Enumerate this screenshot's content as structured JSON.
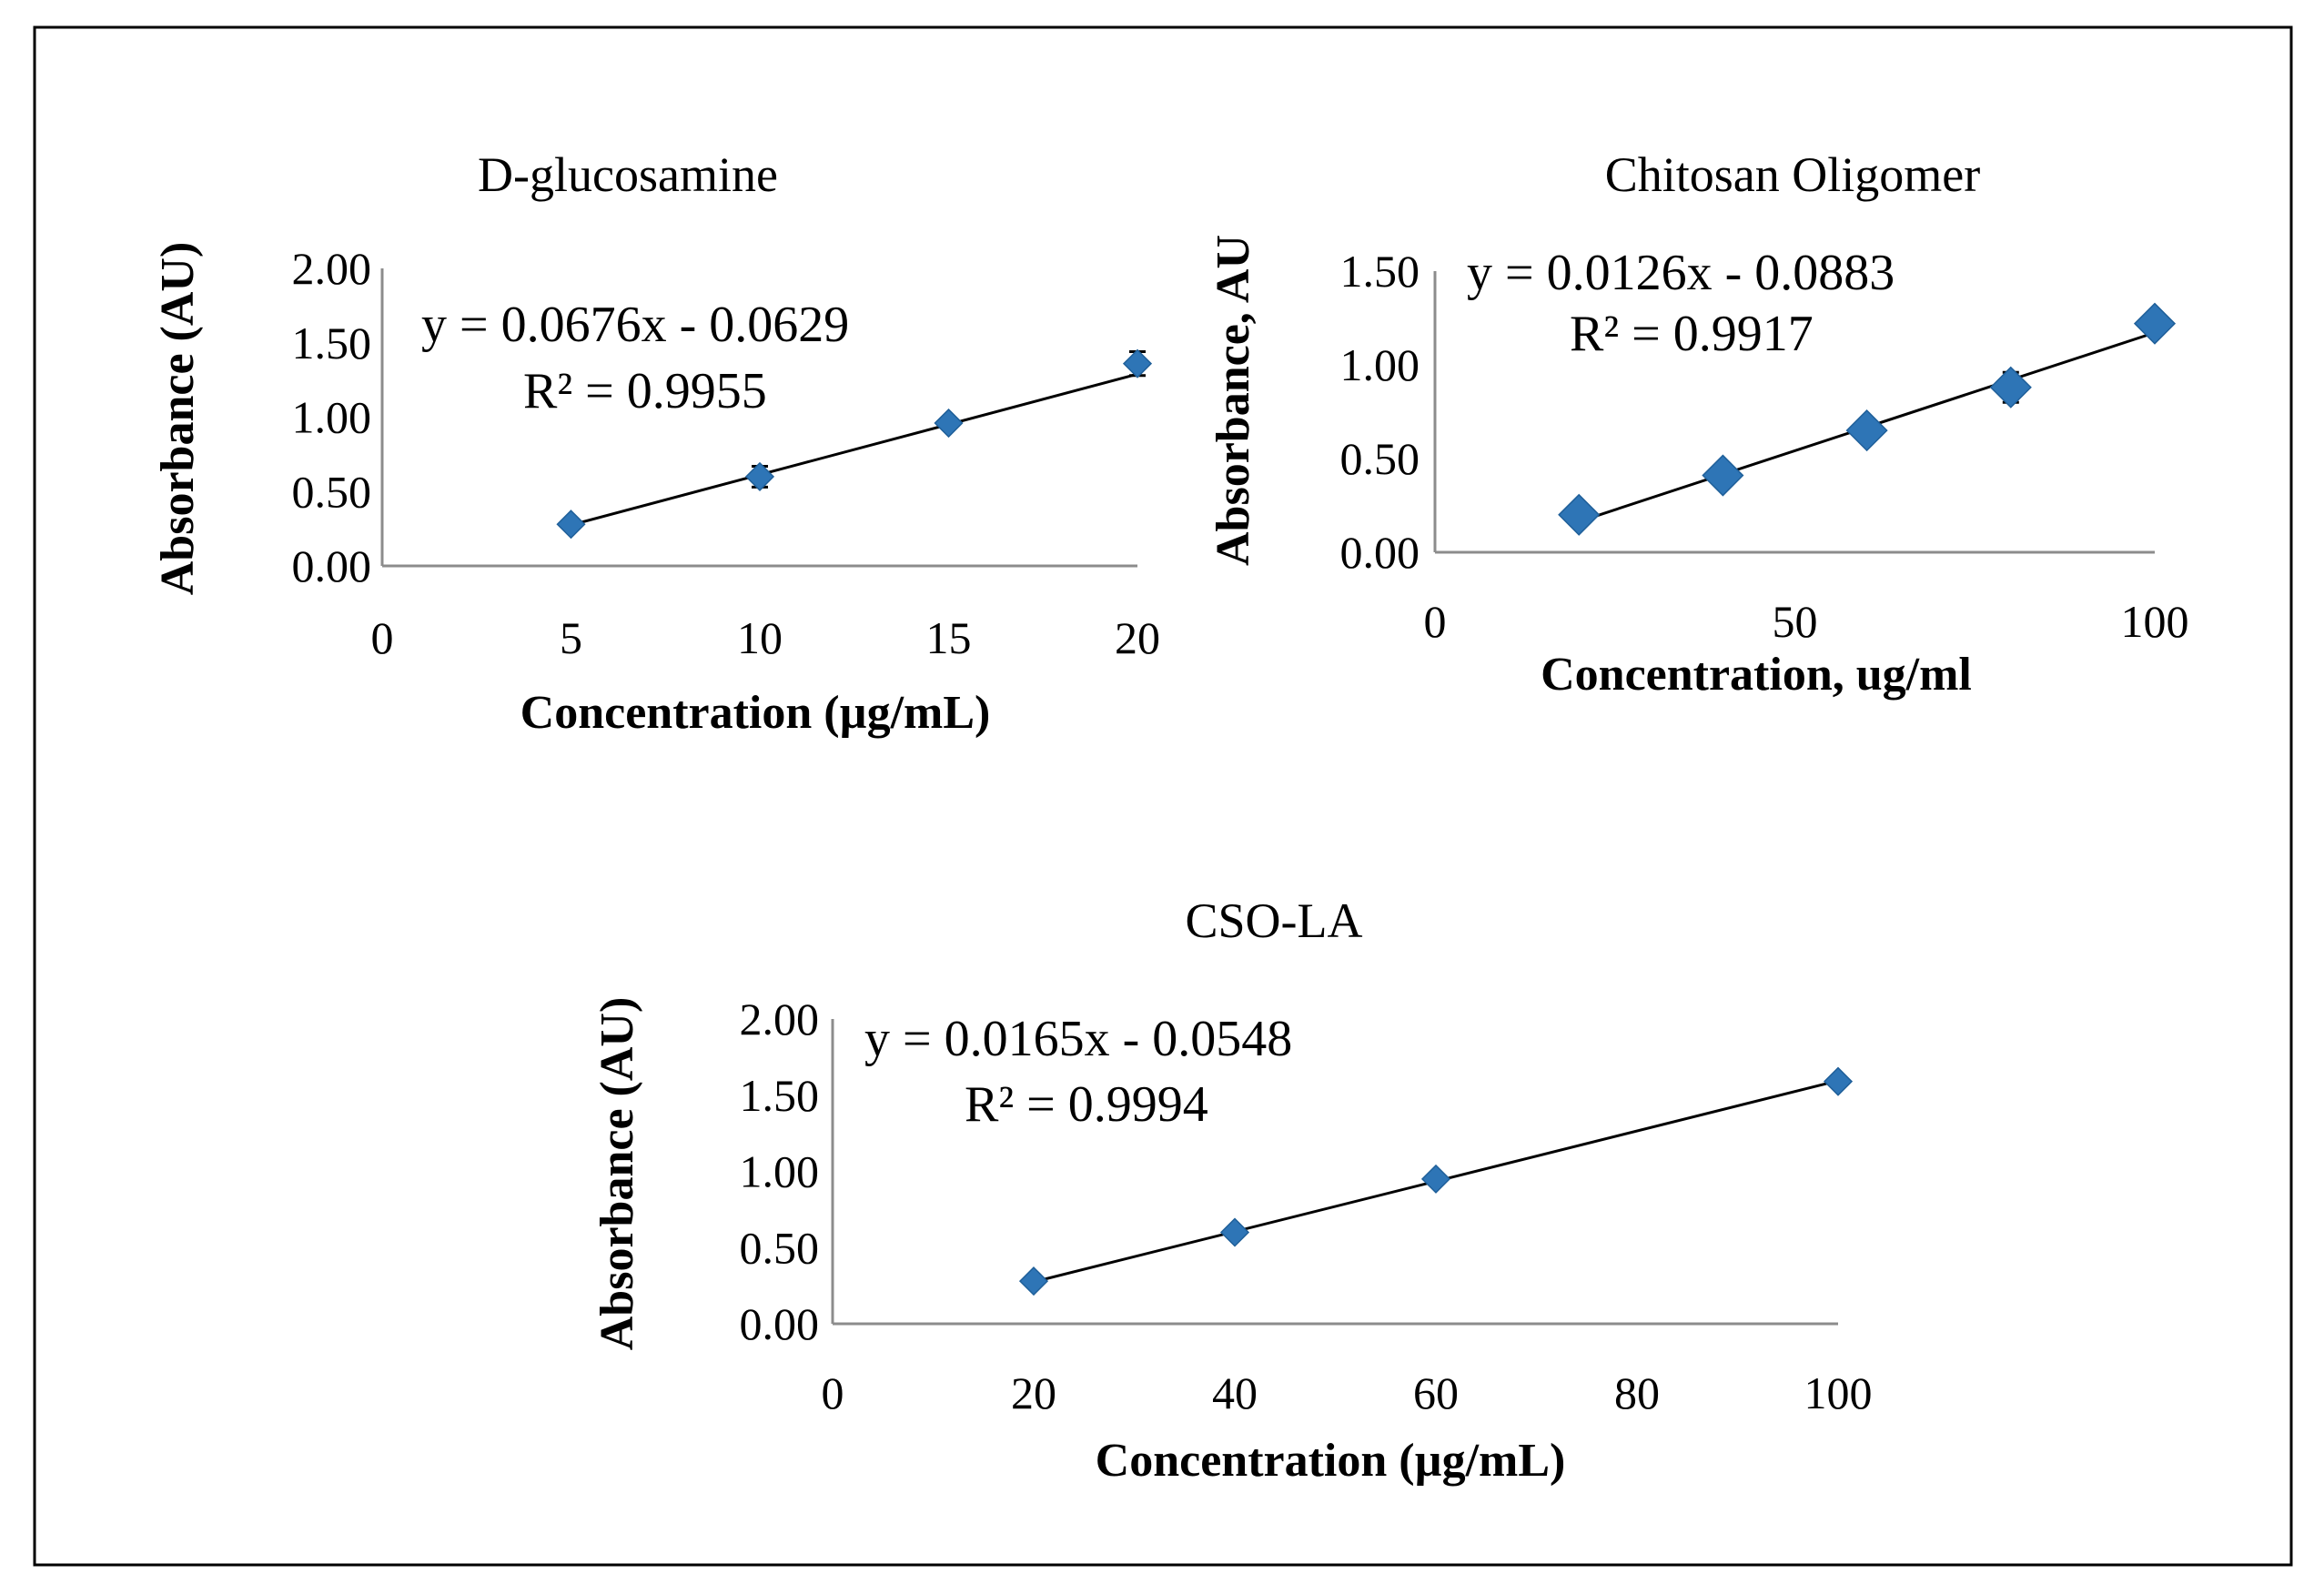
{
  "colors": {
    "marker": "#2e75b6",
    "axis": "#8c8c8c",
    "trendline": "#000000",
    "text": "#000000"
  },
  "chart_data": [
    {
      "type": "scatter",
      "title": "D-glucosamine",
      "xlabel": "Concentration (µg/mL)",
      "ylabel": "Absorbance (AU)",
      "xlim": [
        0,
        20
      ],
      "ylim": [
        0,
        2
      ],
      "xticks": [
        0,
        5,
        10,
        15,
        20
      ],
      "xtick_labels": [
        "0",
        "5",
        "10",
        "15",
        "20"
      ],
      "yticks": [
        0,
        0.5,
        1,
        1.5,
        2
      ],
      "ytick_labels": [
        "0.00",
        "0.50",
        "1.00",
        "1.50",
        "2.00"
      ],
      "marker": "small-diamond",
      "x": [
        5,
        10,
        15,
        20
      ],
      "y": [
        0.28,
        0.6,
        0.96,
        1.36
      ],
      "error": [
        0.03,
        0.07,
        0.03,
        0.08
      ],
      "trendline": {
        "slope": 0.0676,
        "intercept": -0.0629,
        "x_range": [
          5,
          20
        ]
      },
      "equation": "y = 0.0676x - 0.0629",
      "r2": "R² = 0.9955"
    },
    {
      "type": "scatter",
      "title": "Chitosan Oligomer",
      "xlabel": "Concentration, ug/ml",
      "ylabel": "Absorbance, AU",
      "xlim": [
        0,
        100
      ],
      "ylim": [
        0,
        1.5
      ],
      "xticks": [
        0,
        50,
        100
      ],
      "xtick_labels": [
        "0",
        "50",
        "100"
      ],
      "yticks": [
        0,
        0.5,
        1,
        1.5
      ],
      "ytick_labels": [
        "0.00",
        "0.50",
        "1.00",
        "1.50"
      ],
      "marker": "large-diamond",
      "x": [
        20,
        40,
        60,
        80,
        100
      ],
      "y": [
        0.2,
        0.41,
        0.65,
        0.88,
        1.22
      ],
      "error": [
        0.02,
        0.06,
        0.02,
        0.08,
        0.02
      ],
      "trendline": {
        "slope": 0.0126,
        "intercept": -0.0883,
        "x_range": [
          20,
          100
        ]
      },
      "equation": "y = 0.0126x - 0.0883",
      "r2": "R² = 0.9917"
    },
    {
      "type": "scatter",
      "title": "CSO-LA",
      "xlabel": "Concentration (µg/mL)",
      "ylabel": "Absorbance (AU)",
      "xlim": [
        0,
        100
      ],
      "ylim": [
        0,
        2
      ],
      "xticks": [
        0,
        20,
        40,
        60,
        80,
        100
      ],
      "xtick_labels": [
        "0",
        "20",
        "40",
        "60",
        "80",
        "100"
      ],
      "yticks": [
        0,
        0.5,
        1,
        1.5,
        2
      ],
      "ytick_labels": [
        "0.00",
        "0.50",
        "1.00",
        "1.50",
        "2.00"
      ],
      "marker": "small-diamond",
      "x": [
        20,
        40,
        60,
        100
      ],
      "y": [
        0.28,
        0.6,
        0.95,
        1.59
      ],
      "error": [
        0.03,
        0.03,
        0.03,
        0.03
      ],
      "trendline": {
        "slope": 0.0165,
        "intercept": -0.0548,
        "x_range": [
          20,
          100
        ]
      },
      "equation": "y = 0.0165x - 0.0548",
      "r2": "R² = 0.9994"
    }
  ]
}
